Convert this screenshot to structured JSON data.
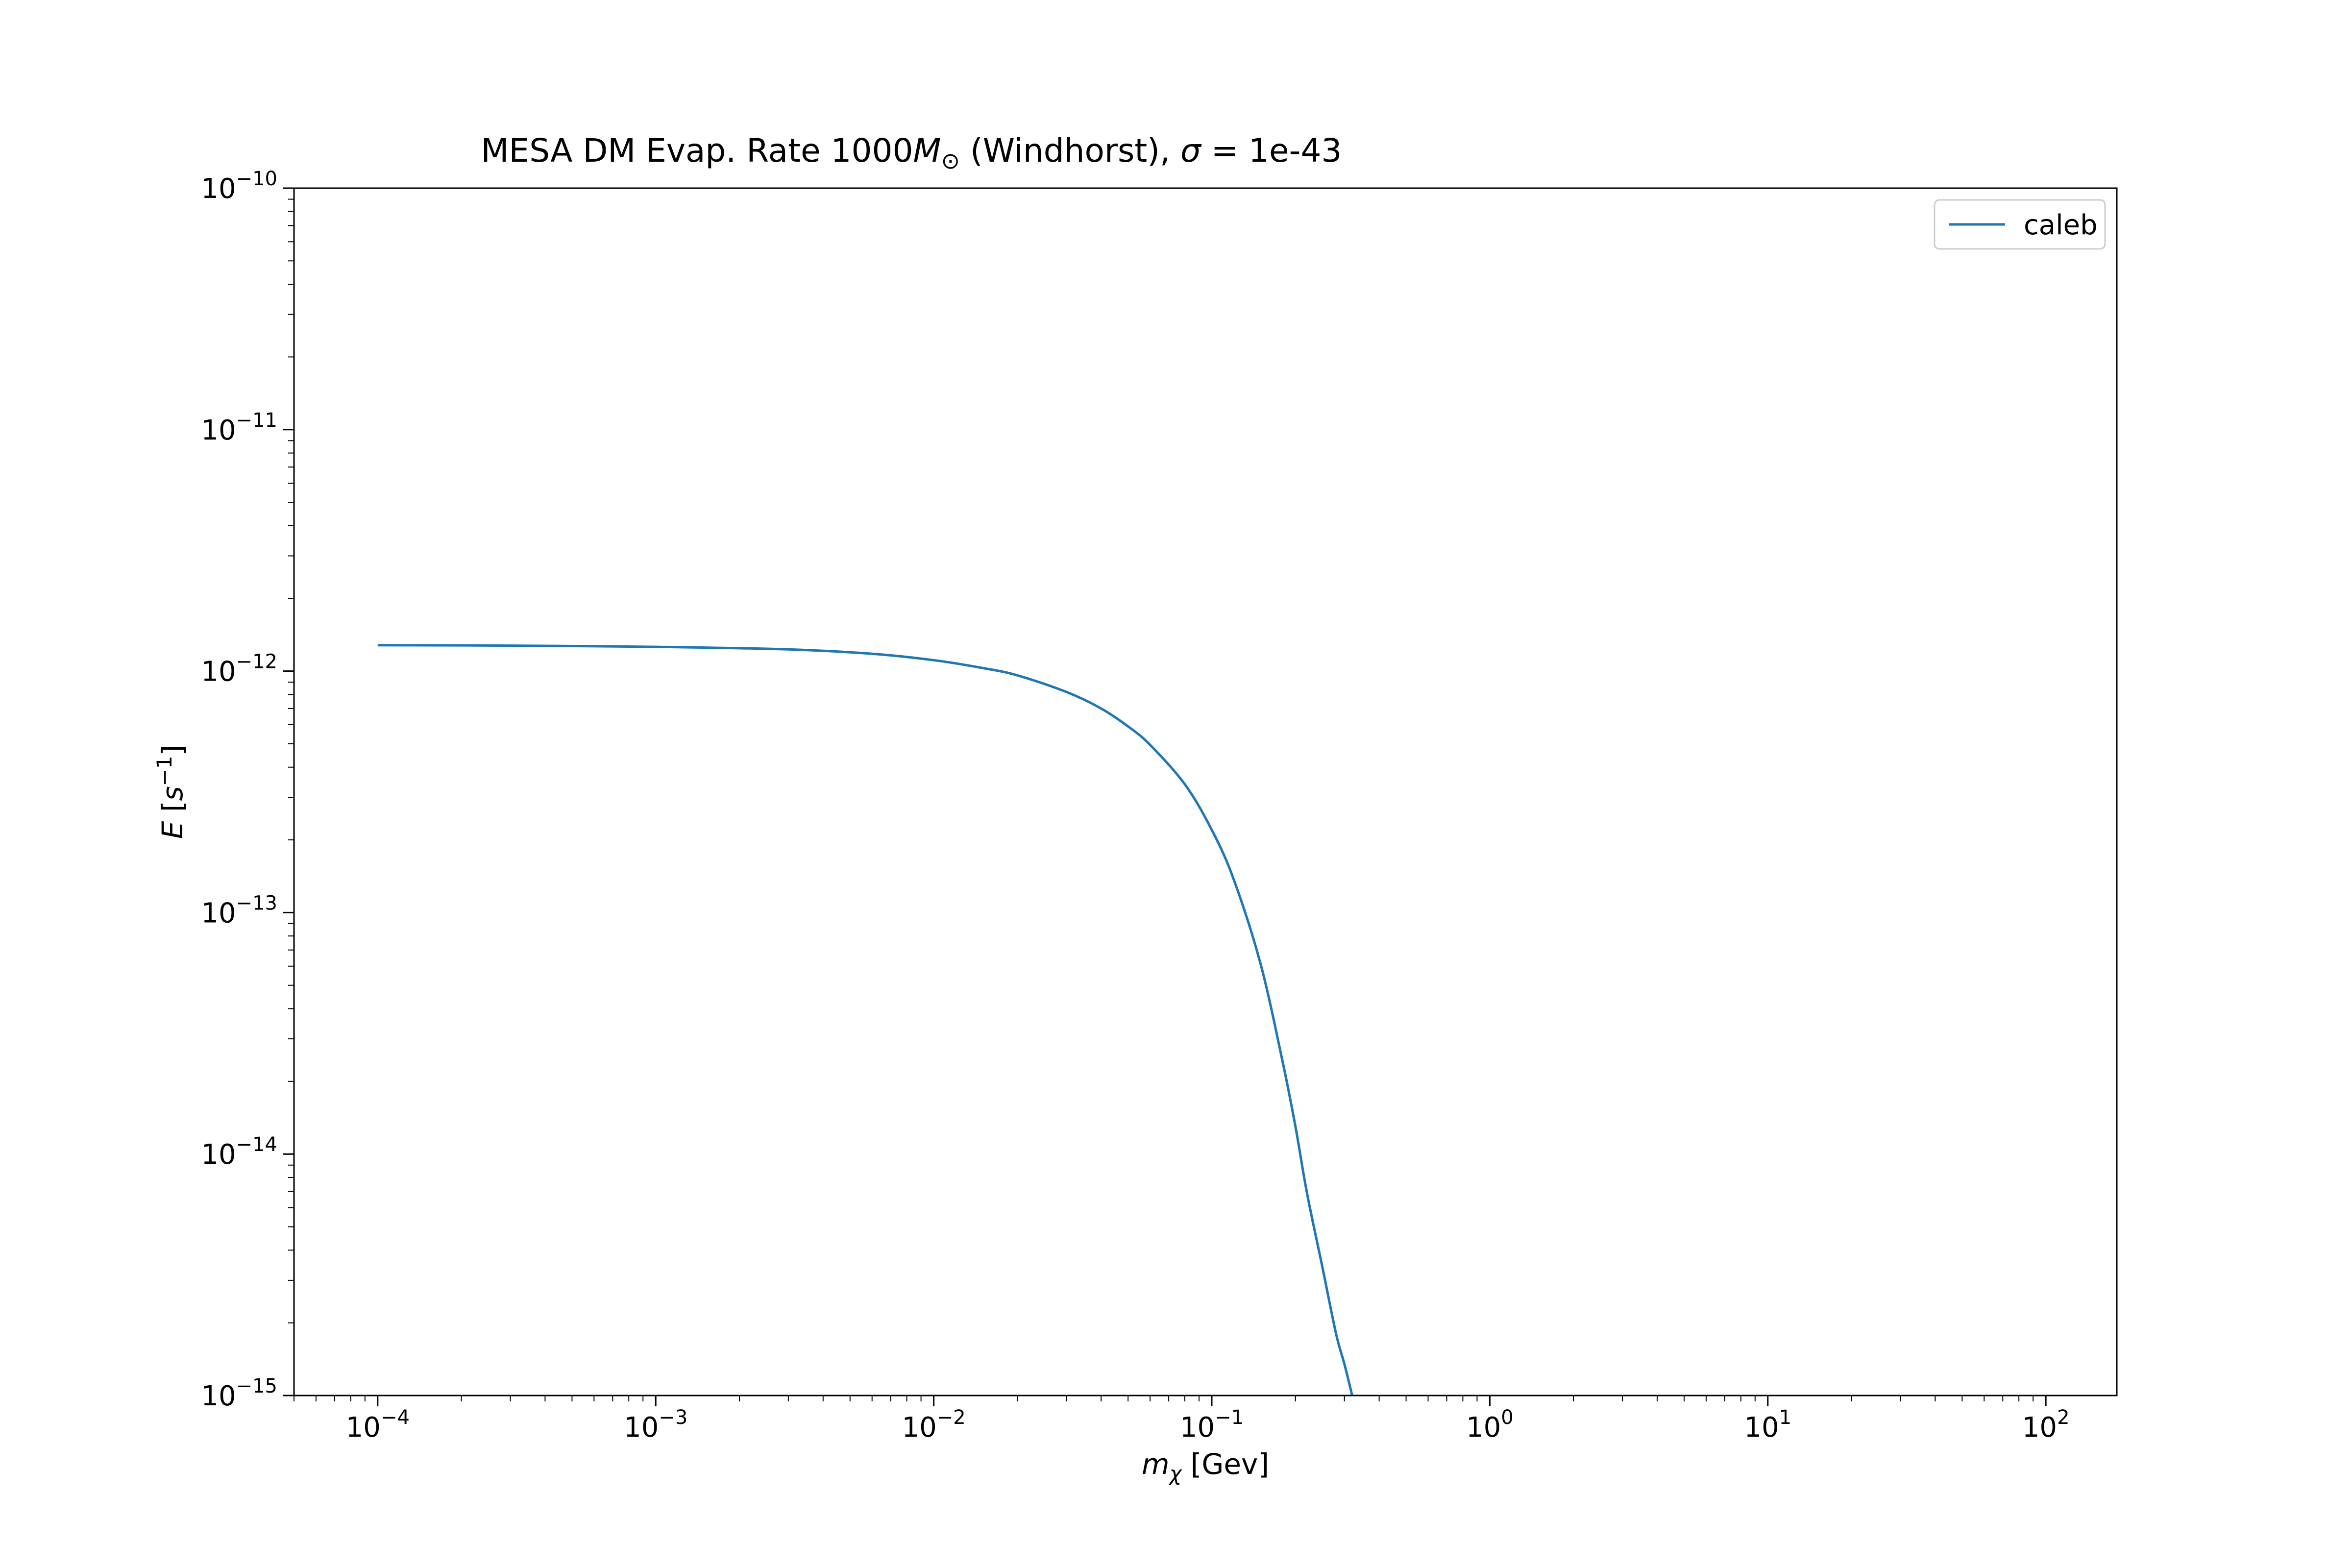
{
  "chart_data": {
    "type": "line",
    "title": {
      "prefix": "MESA DM Evap. Rate 1000",
      "msun_symbol": "M",
      "msun_sub": "⊙",
      "middle": " (Windhorst), ",
      "sigma": "σ",
      "suffix": " = 1e-43"
    },
    "xlabel": {
      "sym": "m",
      "sub": "χ",
      "rest": " [Gev]"
    },
    "ylabel": {
      "sym": "E",
      "rest_open": " [",
      "unit": "s",
      "exp": "−1",
      "rest_close": "]"
    },
    "x_scale": "log",
    "y_scale": "log",
    "xlim": [
      5e-05,
      180
    ],
    "ylim": [
      1e-15,
      1e-10
    ],
    "x_ticks": [
      {
        "value": 0.0001,
        "base": "10",
        "exp": "−4"
      },
      {
        "value": 0.001,
        "base": "10",
        "exp": "−3"
      },
      {
        "value": 0.01,
        "base": "10",
        "exp": "−2"
      },
      {
        "value": 0.1,
        "base": "10",
        "exp": "−1"
      },
      {
        "value": 1,
        "base": "10",
        "exp": "0"
      },
      {
        "value": 10,
        "base": "10",
        "exp": "1"
      },
      {
        "value": 100,
        "base": "10",
        "exp": "2"
      }
    ],
    "y_ticks": [
      {
        "value": 1e-15,
        "base": "10",
        "exp": "−15"
      },
      {
        "value": 1e-14,
        "base": "10",
        "exp": "−14"
      },
      {
        "value": 1e-13,
        "base": "10",
        "exp": "−13"
      },
      {
        "value": 1e-12,
        "base": "10",
        "exp": "−12"
      },
      {
        "value": 1e-11,
        "base": "10",
        "exp": "−11"
      },
      {
        "value": 1e-10,
        "base": "10",
        "exp": "−10"
      }
    ],
    "grid": false,
    "legend": {
      "position": "top-right"
    },
    "series": [
      {
        "name": "caleb",
        "color": "#1f77b4",
        "x": [
          0.0001,
          0.0003,
          0.001,
          0.003,
          0.006,
          0.01,
          0.015,
          0.02,
          0.03,
          0.04,
          0.05,
          0.06,
          0.08,
          0.1,
          0.12,
          0.15,
          0.18,
          0.2,
          0.22,
          0.25,
          0.28,
          0.3,
          0.32
        ],
        "y": [
          1.28e-12,
          1.275e-12,
          1.26e-12,
          1.23e-12,
          1.18e-12,
          1.11e-12,
          1.03e-12,
          9.6e-13,
          8.2e-13,
          7e-13,
          5.9e-13,
          4.95e-13,
          3.4e-13,
          2.2e-13,
          1.37e-13,
          6.1e-14,
          2.4e-14,
          1.3e-14,
          6.9e-15,
          3.4e-15,
          1.8e-15,
          1.35e-15,
          1e-15
        ]
      }
    ]
  }
}
